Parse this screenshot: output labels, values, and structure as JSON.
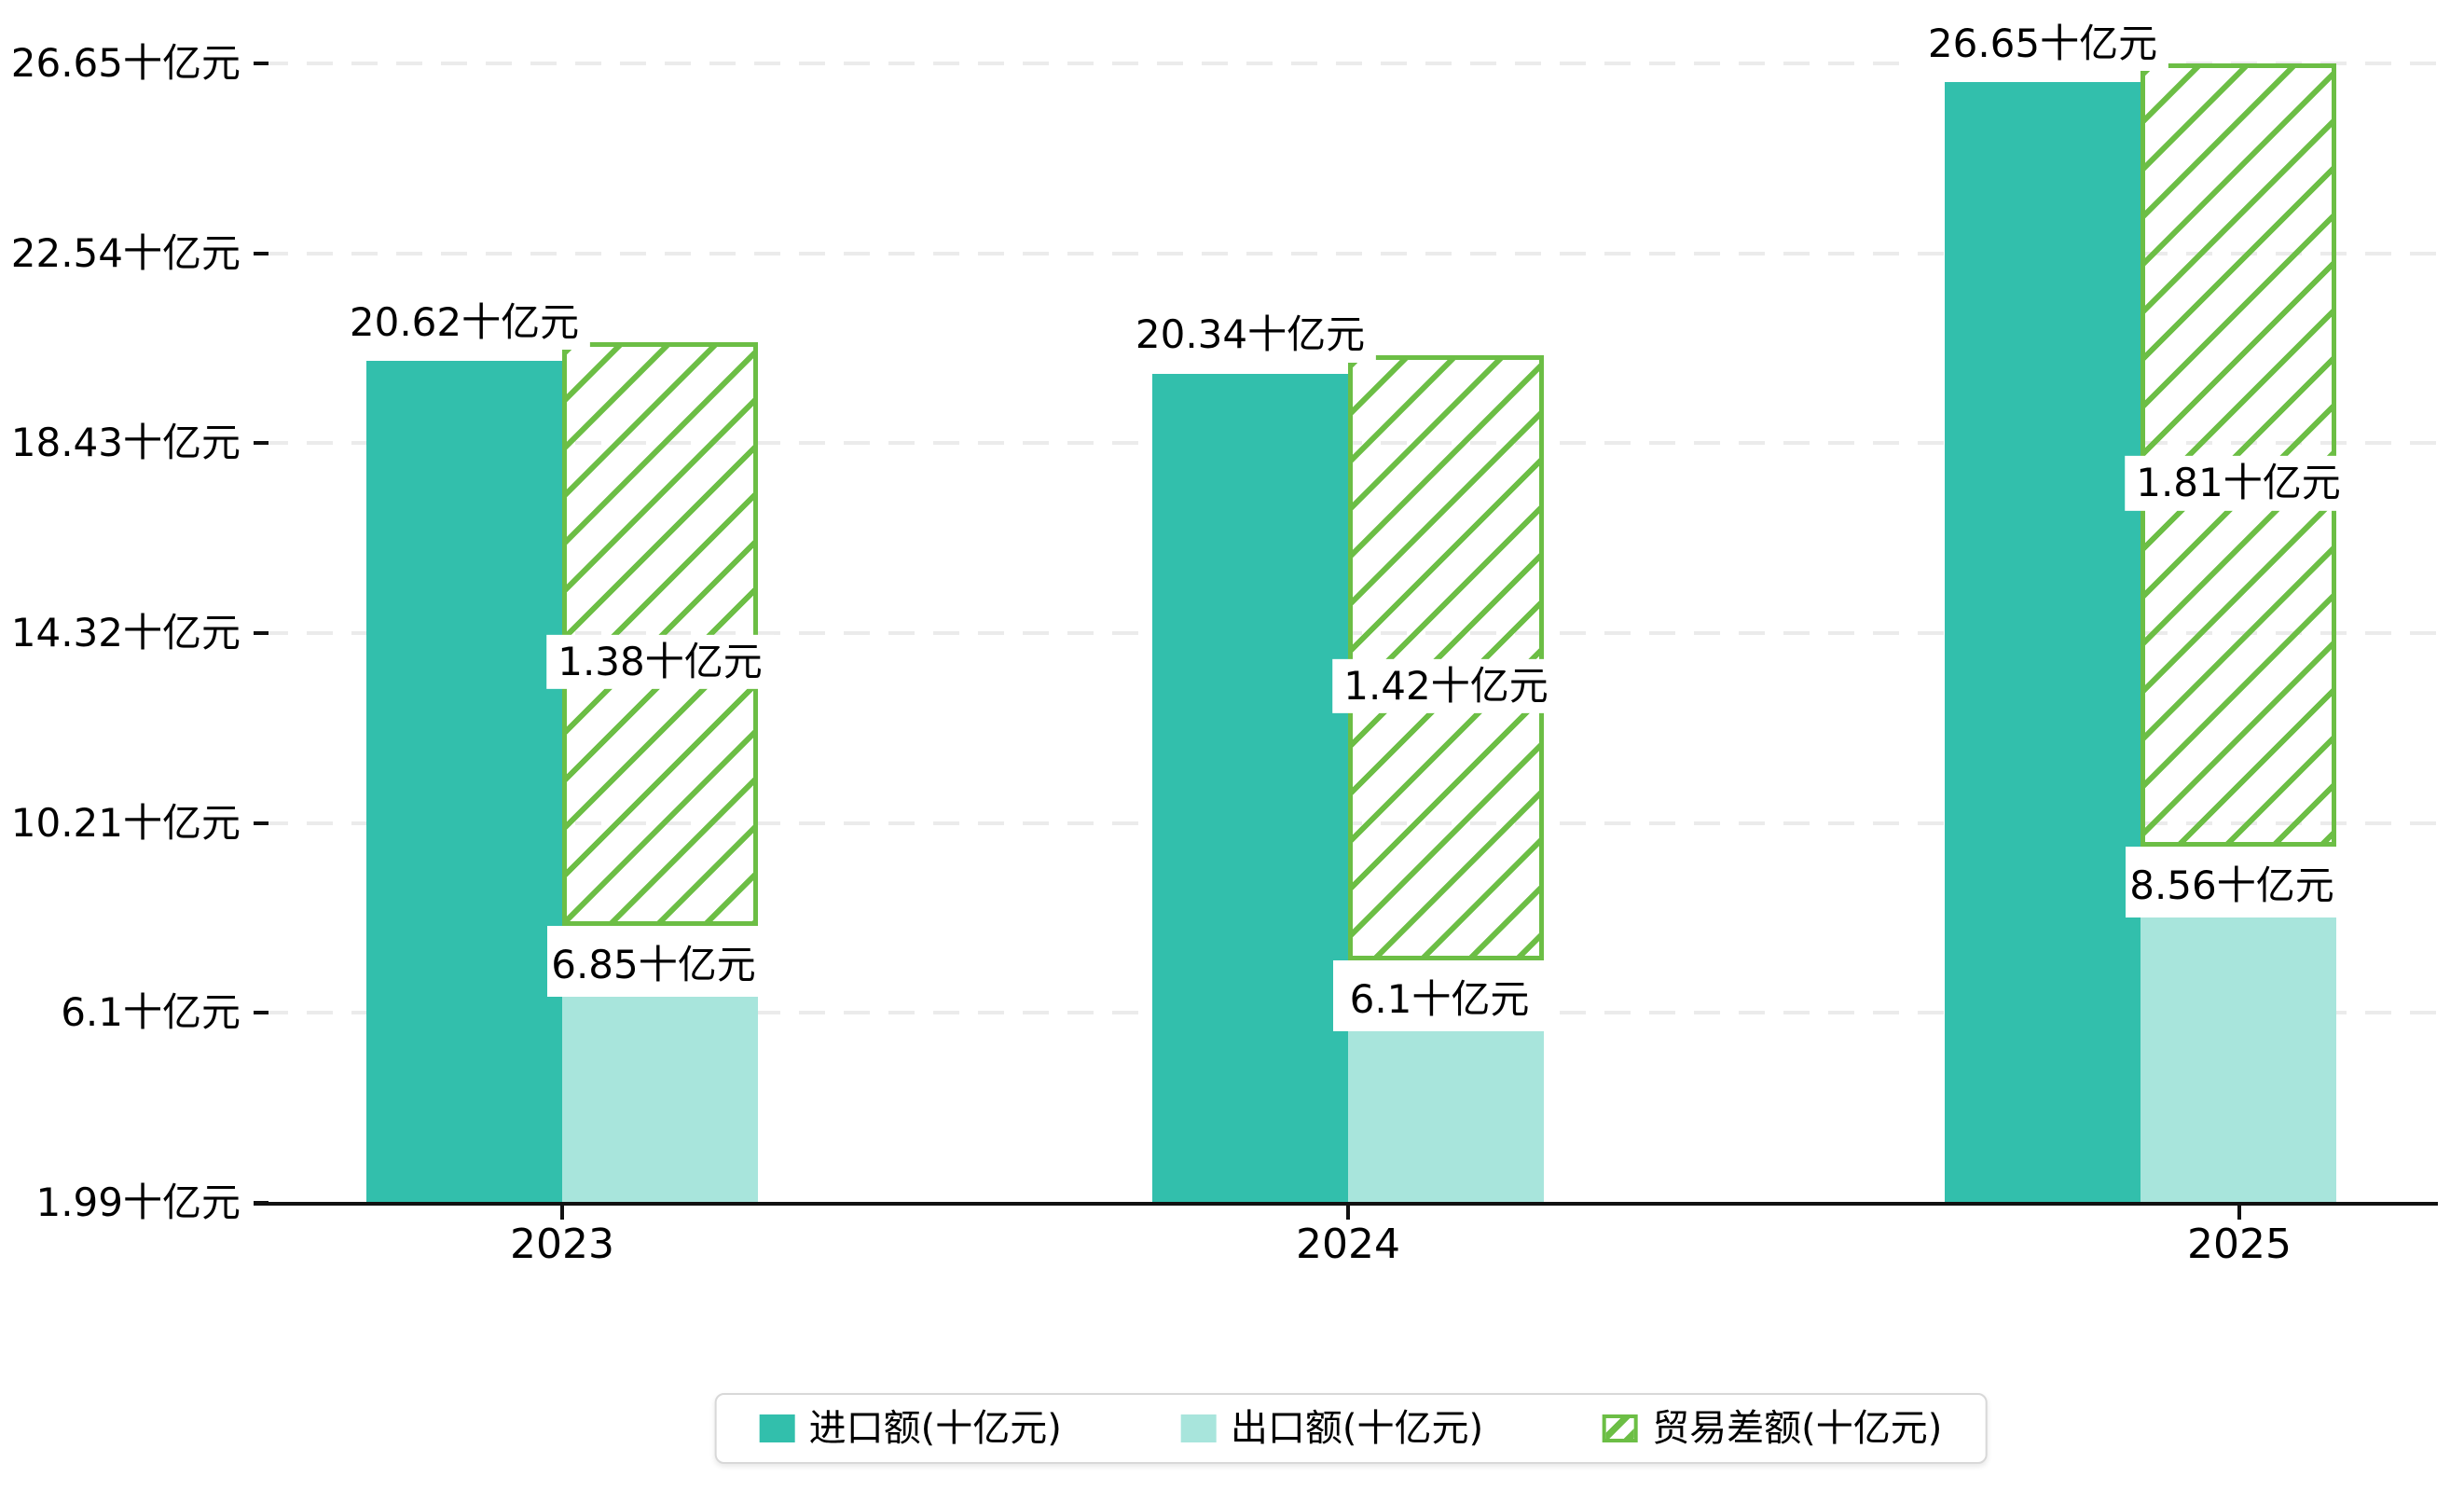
{
  "chart_data": {
    "type": "bar",
    "title": "",
    "unit": "十亿元",
    "categories": [
      "2023",
      "2024",
      "2025"
    ],
    "series": [
      {
        "name": "进口额(十亿元)",
        "role": "import",
        "values": [
          20.62,
          20.34,
          26.65
        ],
        "data_labels": [
          "20.62十亿元",
          "20.34十亿元",
          "26.65十亿元"
        ],
        "color": "#32bfac",
        "style": "solid"
      },
      {
        "name": "出口额(十亿元)",
        "role": "export",
        "values": [
          6.85,
          6.1,
          8.56
        ],
        "data_labels": [
          "6.85十亿元",
          "6.1十亿元",
          "8.56十亿元"
        ],
        "color": "#a8e5dc",
        "style": "solid"
      },
      {
        "name": "贸易差额(十亿元)",
        "role": "trade-balance",
        "values": [
          1.38,
          1.42,
          1.81
        ],
        "data_labels": [
          "1.38十亿元",
          "1.42十亿元",
          "1.81十亿元"
        ],
        "color": "#6cbe45",
        "style": "hatched"
      }
    ],
    "y_axis": {
      "tick_labels": [
        "26.65十亿元",
        "22.54十亿元",
        "18.43十亿元",
        "14.32十亿元",
        "10.21十亿元",
        "6.1十亿元",
        "1.99十亿元"
      ],
      "tick_values": [
        26.65,
        22.54,
        18.43,
        14.32,
        10.21,
        6.1,
        1.99
      ],
      "min": 1.99,
      "max": 26.65
    },
    "x_axis": {
      "tick_labels": [
        "2023",
        "2024",
        "2025"
      ]
    },
    "grid": {
      "horizontal": "dashed",
      "vertical": "none",
      "color": "#ebebeb"
    },
    "legend": {
      "position": "bottom-center",
      "items": [
        "进口额(十亿元)",
        "出口额(十亿元)",
        "贸易差额(十亿元)"
      ]
    },
    "colors": {
      "import": "#32bfac",
      "export": "#a8e5dc",
      "trade_balance": "#6cbe45",
      "axis": "#111111",
      "text": "#000000",
      "grid": "#ebebeb",
      "legend_border": "#d8d8d8",
      "background": "#ffffff"
    }
  }
}
